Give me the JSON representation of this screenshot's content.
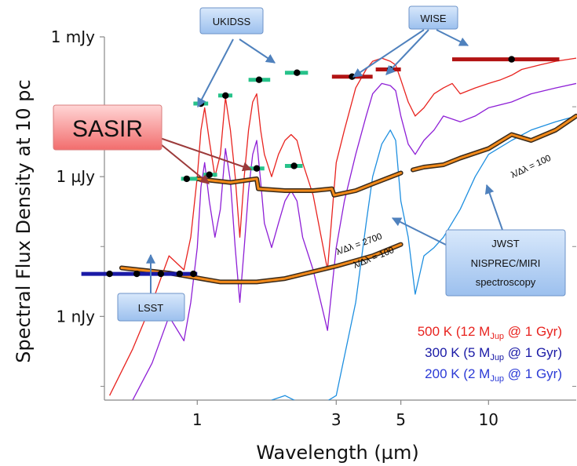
{
  "chart_data": {
    "type": "line",
    "title": "",
    "xlabel": "Wavelength (µm)",
    "ylabel": "Spectral Flux Density at 10 pc",
    "x_scale": "log",
    "y_scale": "log",
    "xlim": [
      0.48,
      20
    ],
    "ylim_mJy": [
      1.6e-08,
      1.0
    ],
    "x_ticks": [
      {
        "label": "1",
        "value": 1
      },
      {
        "label": "3",
        "value": 3
      },
      {
        "label": "5",
        "value": 5
      },
      {
        "label": "10",
        "value": 10
      }
    ],
    "y_ticks": [
      {
        "label": "1 mJy",
        "value": 1
      },
      {
        "label": "1 µJy",
        "value": 0.001
      },
      {
        "label": "1 nJy",
        "value": 1e-06
      }
    ],
    "series": [
      {
        "name": "500 K (12 MJup @ 1 Gyr)",
        "label_main": "500 K (12 M",
        "label_sub": "Jup",
        "label_tail": " @ 1 Gyr)",
        "color": "#e8231f",
        "x": [
          0.5,
          0.6,
          0.7,
          0.8,
          0.9,
          0.95,
          1.0,
          1.03,
          1.06,
          1.1,
          1.15,
          1.2,
          1.25,
          1.3,
          1.35,
          1.4,
          1.45,
          1.5,
          1.55,
          1.6,
          1.65,
          1.7,
          1.8,
          1.9,
          2.0,
          2.1,
          2.2,
          2.3,
          2.5,
          2.8,
          3.0,
          3.2,
          3.5,
          3.8,
          4.0,
          4.3,
          4.6,
          4.8,
          5.0,
          5.3,
          5.6,
          6.0,
          6.5,
          7.0,
          7.5,
          8.0,
          9.0,
          10.0,
          11.0,
          12.0,
          13.0,
          15.0,
          17.0,
          20.0
        ],
        "y": [
          2e-08,
          2e-07,
          2e-06,
          2e-05,
          1e-05,
          5e-05,
          0.001,
          0.01,
          0.03,
          0.006,
          0.001,
          0.003,
          0.05,
          0.01,
          0.001,
          5e-05,
          0.001,
          0.01,
          0.04,
          0.06,
          0.01,
          0.003,
          0.001,
          0.003,
          0.006,
          0.008,
          0.006,
          0.002,
          0.0004,
          1e-05,
          0.002,
          0.01,
          0.08,
          0.2,
          0.3,
          0.35,
          0.3,
          0.25,
          0.12,
          0.04,
          0.02,
          0.03,
          0.06,
          0.08,
          0.1,
          0.06,
          0.08,
          0.1,
          0.12,
          0.15,
          0.2,
          0.25,
          0.3,
          0.35
        ]
      },
      {
        "name": "300 K (5 MJup @ 1 Gyr)",
        "label_main": "300 K (5 M",
        "label_sub": "Jup",
        "label_tail": " @ 1 Gyr)",
        "color": "#8e1fd6",
        "x": [
          0.6,
          0.7,
          0.8,
          0.9,
          0.95,
          1.0,
          1.03,
          1.06,
          1.1,
          1.15,
          1.2,
          1.25,
          1.3,
          1.35,
          1.4,
          1.45,
          1.5,
          1.55,
          1.6,
          1.65,
          1.7,
          1.8,
          1.9,
          2.0,
          2.1,
          2.2,
          2.3,
          2.5,
          2.8,
          3.0,
          3.2,
          3.5,
          3.8,
          4.0,
          4.3,
          4.6,
          4.8,
          5.0,
          5.3,
          5.6,
          6.0,
          6.5,
          7.0,
          8.0,
          9.0,
          10.0,
          12.0,
          14.0,
          17.0,
          20.0
        ],
        "y": [
          1.6e-08,
          1e-07,
          1e-06,
          3e-07,
          2e-06,
          3e-05,
          0.0006,
          0.002,
          0.0003,
          5e-05,
          0.0002,
          0.004,
          0.0008,
          3e-05,
          2e-06,
          3e-05,
          0.0005,
          0.003,
          0.006,
          0.0008,
          0.0001,
          3e-05,
          0.0001,
          0.0003,
          0.0005,
          0.0003,
          5e-05,
          1e-05,
          5e-07,
          3e-05,
          0.0003,
          0.003,
          0.02,
          0.06,
          0.1,
          0.09,
          0.07,
          0.02,
          0.005,
          0.003,
          0.006,
          0.01,
          0.02,
          0.015,
          0.02,
          0.03,
          0.04,
          0.06,
          0.08,
          0.1
        ]
      },
      {
        "name": "200 K (2 MJup @ 1 Gyr)",
        "label_main": "200 K (2 M",
        "label_sub": "Jup",
        "label_tail": " @ 1 Gyr)",
        "color": "#1e8fe0",
        "x": [
          1.8,
          2.0,
          2.5,
          3.0,
          3.5,
          3.8,
          4.0,
          4.3,
          4.6,
          4.8,
          5.0,
          5.3,
          5.6,
          6.0,
          6.5,
          7.0,
          8.0,
          9.0,
          10.0,
          12.0,
          14.0,
          17.0,
          20.0
        ],
        "y": [
          1.6e-08,
          2e-08,
          1e-08,
          2e-08,
          2e-06,
          0.0001,
          0.001,
          0.005,
          0.01,
          0.006,
          0.0003,
          5e-05,
          3e-06,
          2e-05,
          3e-05,
          5e-05,
          0.0002,
          0.001,
          0.003,
          0.006,
          0.01,
          0.015,
          0.02
        ]
      }
    ],
    "photometry": [
      {
        "survey": "LSST",
        "color": "#1a1aa6",
        "points": [
          [
            0.5,
            8.2e-06,
            0.4,
            1.0
          ],
          [
            0.62,
            8.2e-06,
            0.0,
            0.0
          ],
          [
            0.75,
            8.2e-06,
            0.0,
            0.0
          ],
          [
            0.87,
            8.2e-06,
            0.0,
            0.0
          ],
          [
            0.97,
            8.2e-06,
            0.0,
            0.0
          ]
        ]
      },
      {
        "survey": "UKIDSS",
        "color": "#27c28a",
        "points": [
          [
            1.03,
            0.037,
            0.97,
            1.09
          ],
          [
            1.25,
            0.055,
            1.18,
            1.32
          ],
          [
            1.63,
            0.12,
            1.5,
            1.78
          ],
          [
            2.2,
            0.17,
            2.0,
            2.4
          ]
        ]
      },
      {
        "survey": "SASIR",
        "color": "#27c28a",
        "points": [
          [
            0.92,
            0.0009,
            0.88,
            1.0
          ],
          [
            1.1,
            0.0011,
            1.05,
            1.17
          ],
          [
            1.6,
            0.0015,
            1.5,
            1.7
          ],
          [
            2.15,
            0.0017,
            2.0,
            2.3
          ]
        ]
      },
      {
        "survey": "WISE",
        "color": "#b21313",
        "points": [
          [
            3.4,
            0.14,
            2.9,
            4.0
          ],
          [
            4.6,
            0.2,
            4.1,
            5.0
          ],
          [
            12.0,
            0.33,
            7.5,
            17.5
          ]
        ]
      }
    ],
    "spectroscopy": [
      {
        "label": "λ/Δλ = 2700",
        "x": [
          1.0,
          1.3,
          1.6,
          1.62,
          2.0,
          2.5,
          2.9,
          2.95,
          3.5,
          4.0,
          5.0
        ],
        "y": [
          0.0009,
          0.00075,
          0.0009,
          0.00055,
          0.0005,
          0.0005,
          0.00055,
          0.0004,
          0.0005,
          0.0007,
          0.0012
        ]
      },
      {
        "label": "λ/Δλ = 100",
        "x": [
          0.55,
          0.8,
          1.2,
          1.6,
          2.0,
          3.0,
          4.0,
          5.0
        ],
        "y": [
          1.1e-05,
          8.5e-06,
          5.5e-06,
          5.5e-06,
          6.5e-06,
          1.2e-05,
          2e-05,
          3.5e-05
        ]
      },
      {
        "label": "λ/Δλ = 100",
        "x": [
          5.5,
          6.0,
          7.0,
          8.0,
          10.0,
          12.0,
          14.0,
          17.0,
          20.0
        ],
        "y": [
          0.0014,
          0.0016,
          0.0018,
          0.0025,
          0.004,
          0.008,
          0.006,
          0.01,
          0.02
        ]
      }
    ],
    "callouts": {
      "ukidss": "UKIDSS",
      "wise": "WISE",
      "sasir": "SASIR",
      "lsst": "LSST",
      "jwst_line1": "JWST",
      "jwst_line2": "NISPREC/MIRI",
      "jwst_line3": "spectroscopy"
    },
    "grid": false,
    "legend_position": "bottom-right"
  }
}
